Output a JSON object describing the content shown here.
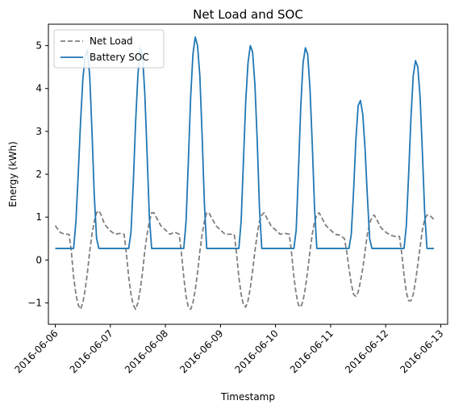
{
  "chart_data": {
    "type": "line",
    "title": "Net Load and SOC",
    "xlabel": "Timestamp",
    "ylabel": "Energy (kWh)",
    "xlim": [
      "2016-06-05T21:00",
      "2016-06-13T03:00"
    ],
    "ylim": [
      -1.5,
      5.5
    ],
    "x_ticks": [
      "2016-06-06",
      "2016-06-07",
      "2016-06-08",
      "2016-06-09",
      "2016-06-10",
      "2016-06-11",
      "2016-06-12",
      "2016-06-13"
    ],
    "y_ticks": [
      -1,
      0,
      1,
      2,
      3,
      4,
      5
    ],
    "grid": false,
    "legend_position": "top-left",
    "series": [
      {
        "name": "Net Load",
        "color": "#7f7f7f",
        "style": "dashed",
        "points": [
          [
            "2016-06-06T00:00",
            0.8
          ],
          [
            "2016-06-06T02:00",
            0.65
          ],
          [
            "2016-06-06T04:00",
            0.6
          ],
          [
            "2016-06-06T06:00",
            0.6
          ],
          [
            "2016-06-06T07:00",
            0.2
          ],
          [
            "2016-06-06T08:00",
            -0.4
          ],
          [
            "2016-06-06T09:00",
            -0.8
          ],
          [
            "2016-06-06T10:00",
            -1.05
          ],
          [
            "2016-06-06T11:00",
            -1.15
          ],
          [
            "2016-06-06T12:00",
            -1.0
          ],
          [
            "2016-06-06T13:00",
            -0.7
          ],
          [
            "2016-06-06T14:00",
            -0.3
          ],
          [
            "2016-06-06T15:00",
            0.2
          ],
          [
            "2016-06-06T16:00",
            0.6
          ],
          [
            "2016-06-06T17:00",
            0.9
          ],
          [
            "2016-06-06T18:00",
            1.1
          ],
          [
            "2016-06-06T19:00",
            1.15
          ],
          [
            "2016-06-06T20:00",
            1.05
          ],
          [
            "2016-06-06T21:00",
            0.9
          ],
          [
            "2016-06-06T22:00",
            0.8
          ],
          [
            "2016-06-07T00:00",
            0.68
          ],
          [
            "2016-06-07T02:00",
            0.6
          ],
          [
            "2016-06-07T04:00",
            0.62
          ],
          [
            "2016-06-07T06:00",
            0.6
          ],
          [
            "2016-06-07T07:00",
            0.15
          ],
          [
            "2016-06-07T08:00",
            -0.4
          ],
          [
            "2016-06-07T09:00",
            -0.8
          ],
          [
            "2016-06-07T10:00",
            -1.05
          ],
          [
            "2016-06-07T11:00",
            -1.15
          ],
          [
            "2016-06-07T12:00",
            -1.0
          ],
          [
            "2016-06-07T13:00",
            -0.7
          ],
          [
            "2016-06-07T14:00",
            -0.3
          ],
          [
            "2016-06-07T15:00",
            0.2
          ],
          [
            "2016-06-07T16:00",
            0.6
          ],
          [
            "2016-06-07T17:00",
            0.9
          ],
          [
            "2016-06-07T18:00",
            1.1
          ],
          [
            "2016-06-07T19:00",
            1.1
          ],
          [
            "2016-06-07T20:00",
            1.0
          ],
          [
            "2016-06-07T21:00",
            0.9
          ],
          [
            "2016-06-07T22:00",
            0.8
          ],
          [
            "2016-06-08T00:00",
            0.7
          ],
          [
            "2016-06-08T02:00",
            0.6
          ],
          [
            "2016-06-08T04:00",
            0.65
          ],
          [
            "2016-06-08T06:00",
            0.6
          ],
          [
            "2016-06-08T07:00",
            0.15
          ],
          [
            "2016-06-08T08:00",
            -0.4
          ],
          [
            "2016-06-08T09:00",
            -0.85
          ],
          [
            "2016-06-08T10:00",
            -1.1
          ],
          [
            "2016-06-08T11:00",
            -1.15
          ],
          [
            "2016-06-08T12:00",
            -1.0
          ],
          [
            "2016-06-08T13:00",
            -0.7
          ],
          [
            "2016-06-08T14:00",
            -0.3
          ],
          [
            "2016-06-08T15:00",
            0.2
          ],
          [
            "2016-06-08T16:00",
            0.6
          ],
          [
            "2016-06-08T17:00",
            0.9
          ],
          [
            "2016-06-08T18:00",
            1.1
          ],
          [
            "2016-06-08T19:00",
            1.1
          ],
          [
            "2016-06-08T20:00",
            1.0
          ],
          [
            "2016-06-08T21:00",
            0.9
          ],
          [
            "2016-06-08T22:00",
            0.8
          ],
          [
            "2016-06-09T00:00",
            0.7
          ],
          [
            "2016-06-09T02:00",
            0.6
          ],
          [
            "2016-06-09T04:00",
            0.6
          ],
          [
            "2016-06-09T06:00",
            0.6
          ],
          [
            "2016-06-09T07:00",
            0.15
          ],
          [
            "2016-06-09T08:00",
            -0.4
          ],
          [
            "2016-06-09T09:00",
            -0.8
          ],
          [
            "2016-06-09T10:00",
            -1.05
          ],
          [
            "2016-06-09T11:00",
            -1.1
          ],
          [
            "2016-06-09T12:00",
            -0.95
          ],
          [
            "2016-06-09T13:00",
            -0.65
          ],
          [
            "2016-06-09T14:00",
            -0.25
          ],
          [
            "2016-06-09T15:00",
            0.2
          ],
          [
            "2016-06-09T16:00",
            0.6
          ],
          [
            "2016-06-09T17:00",
            0.9
          ],
          [
            "2016-06-09T18:00",
            1.05
          ],
          [
            "2016-06-09T19:00",
            1.1
          ],
          [
            "2016-06-09T20:00",
            1.0
          ],
          [
            "2016-06-09T21:00",
            0.9
          ],
          [
            "2016-06-09T22:00",
            0.8
          ],
          [
            "2016-06-10T00:00",
            0.7
          ],
          [
            "2016-06-10T02:00",
            0.6
          ],
          [
            "2016-06-10T04:00",
            0.62
          ],
          [
            "2016-06-10T06:00",
            0.6
          ],
          [
            "2016-06-10T07:00",
            0.15
          ],
          [
            "2016-06-10T08:00",
            -0.4
          ],
          [
            "2016-06-10T09:00",
            -0.8
          ],
          [
            "2016-06-10T10:00",
            -1.05
          ],
          [
            "2016-06-10T11:00",
            -1.1
          ],
          [
            "2016-06-10T12:00",
            -0.95
          ],
          [
            "2016-06-10T13:00",
            -0.65
          ],
          [
            "2016-06-10T14:00",
            -0.25
          ],
          [
            "2016-06-10T15:00",
            0.2
          ],
          [
            "2016-06-10T16:00",
            0.6
          ],
          [
            "2016-06-10T17:00",
            0.9
          ],
          [
            "2016-06-10T18:00",
            1.05
          ],
          [
            "2016-06-10T19:00",
            1.1
          ],
          [
            "2016-06-10T20:00",
            1.0
          ],
          [
            "2016-06-10T21:00",
            0.9
          ],
          [
            "2016-06-10T22:00",
            0.8
          ],
          [
            "2016-06-11T00:00",
            0.7
          ],
          [
            "2016-06-11T02:00",
            0.6
          ],
          [
            "2016-06-11T04:00",
            0.58
          ],
          [
            "2016-06-11T06:00",
            0.5
          ],
          [
            "2016-06-11T07:00",
            0.2
          ],
          [
            "2016-06-11T08:00",
            -0.2
          ],
          [
            "2016-06-11T09:00",
            -0.55
          ],
          [
            "2016-06-11T10:00",
            -0.8
          ],
          [
            "2016-06-11T11:00",
            -0.85
          ],
          [
            "2016-06-11T12:00",
            -0.75
          ],
          [
            "2016-06-11T13:00",
            -0.5
          ],
          [
            "2016-06-11T14:00",
            -0.2
          ],
          [
            "2016-06-11T15:00",
            0.2
          ],
          [
            "2016-06-11T16:00",
            0.6
          ],
          [
            "2016-06-11T17:00",
            0.85
          ],
          [
            "2016-06-11T18:00",
            1.0
          ],
          [
            "2016-06-11T19:00",
            1.05
          ],
          [
            "2016-06-11T20:00",
            0.95
          ],
          [
            "2016-06-11T21:00",
            0.85
          ],
          [
            "2016-06-11T22:00",
            0.75
          ],
          [
            "2016-06-12T00:00",
            0.65
          ],
          [
            "2016-06-12T02:00",
            0.58
          ],
          [
            "2016-06-12T04:00",
            0.55
          ],
          [
            "2016-06-12T06:00",
            0.55
          ],
          [
            "2016-06-12T07:00",
            0.15
          ],
          [
            "2016-06-12T08:00",
            -0.35
          ],
          [
            "2016-06-12T09:00",
            -0.75
          ],
          [
            "2016-06-12T10:00",
            -0.95
          ],
          [
            "2016-06-12T11:00",
            -0.95
          ],
          [
            "2016-06-12T12:00",
            -0.8
          ],
          [
            "2016-06-12T13:00",
            -0.5
          ],
          [
            "2016-06-12T14:00",
            -0.1
          ],
          [
            "2016-06-12T15:00",
            0.3
          ],
          [
            "2016-06-12T16:00",
            0.7
          ],
          [
            "2016-06-12T17:00",
            0.95
          ],
          [
            "2016-06-12T18:00",
            1.05
          ],
          [
            "2016-06-12T19:00",
            1.05
          ],
          [
            "2016-06-12T20:00",
            1.0
          ],
          [
            "2016-06-12T21:00",
            0.95
          ]
        ]
      },
      {
        "name": "Battery SOC",
        "color": "#1f77b4",
        "style": "solid",
        "points": [
          [
            "2016-06-06T00:00",
            0.27
          ],
          [
            "2016-06-06T08:00",
            0.27
          ],
          [
            "2016-06-06T09:00",
            0.9
          ],
          [
            "2016-06-06T10:00",
            2.0
          ],
          [
            "2016-06-06T11:00",
            3.2
          ],
          [
            "2016-06-06T12:00",
            4.2
          ],
          [
            "2016-06-06T13:00",
            4.75
          ],
          [
            "2016-06-06T14:00",
            4.9
          ],
          [
            "2016-06-06T15:00",
            4.3
          ],
          [
            "2016-06-06T16:00",
            3.0
          ],
          [
            "2016-06-06T17:00",
            1.5
          ],
          [
            "2016-06-06T18:00",
            0.5
          ],
          [
            "2016-06-06T19:00",
            0.27
          ],
          [
            "2016-06-07T08:00",
            0.27
          ],
          [
            "2016-06-07T09:00",
            0.65
          ],
          [
            "2016-06-07T10:00",
            1.8
          ],
          [
            "2016-06-07T11:00",
            3.2
          ],
          [
            "2016-06-07T12:00",
            4.3
          ],
          [
            "2016-06-07T13:00",
            4.95
          ],
          [
            "2016-06-07T14:00",
            4.8
          ],
          [
            "2016-06-07T15:00",
            3.9
          ],
          [
            "2016-06-07T16:00",
            2.5
          ],
          [
            "2016-06-07T17:00",
            1.0
          ],
          [
            "2016-06-07T18:00",
            0.27
          ],
          [
            "2016-06-08T08:00",
            0.27
          ],
          [
            "2016-06-08T09:00",
            0.9
          ],
          [
            "2016-06-08T10:00",
            2.3
          ],
          [
            "2016-06-08T11:00",
            3.8
          ],
          [
            "2016-06-08T12:00",
            4.8
          ],
          [
            "2016-06-08T13:00",
            5.2
          ],
          [
            "2016-06-08T14:00",
            5.0
          ],
          [
            "2016-06-08T15:00",
            4.3
          ],
          [
            "2016-06-08T16:00",
            2.9
          ],
          [
            "2016-06-08T17:00",
            1.3
          ],
          [
            "2016-06-08T18:00",
            0.27
          ],
          [
            "2016-06-09T08:00",
            0.27
          ],
          [
            "2016-06-09T09:00",
            0.9
          ],
          [
            "2016-06-09T10:00",
            2.3
          ],
          [
            "2016-06-09T11:00",
            3.7
          ],
          [
            "2016-06-09T12:00",
            4.6
          ],
          [
            "2016-06-09T13:00",
            5.0
          ],
          [
            "2016-06-09T14:00",
            4.85
          ],
          [
            "2016-06-09T15:00",
            4.1
          ],
          [
            "2016-06-09T16:00",
            2.8
          ],
          [
            "2016-06-09T17:00",
            1.2
          ],
          [
            "2016-06-09T18:00",
            0.27
          ],
          [
            "2016-06-10T08:00",
            0.27
          ],
          [
            "2016-06-10T09:00",
            0.7
          ],
          [
            "2016-06-10T10:00",
            2.1
          ],
          [
            "2016-06-10T11:00",
            3.6
          ],
          [
            "2016-06-10T12:00",
            4.6
          ],
          [
            "2016-06-10T13:00",
            4.95
          ],
          [
            "2016-06-10T14:00",
            4.8
          ],
          [
            "2016-06-10T15:00",
            4.0
          ],
          [
            "2016-06-10T16:00",
            2.7
          ],
          [
            "2016-06-10T17:00",
            1.2
          ],
          [
            "2016-06-10T18:00",
            0.27
          ],
          [
            "2016-06-11T08:00",
            0.27
          ],
          [
            "2016-06-11T09:00",
            0.6
          ],
          [
            "2016-06-11T10:00",
            1.6
          ],
          [
            "2016-06-11T11:00",
            2.8
          ],
          [
            "2016-06-11T12:00",
            3.6
          ],
          [
            "2016-06-11T13:00",
            3.72
          ],
          [
            "2016-06-11T14:00",
            3.4
          ],
          [
            "2016-06-11T15:00",
            2.6
          ],
          [
            "2016-06-11T16:00",
            1.5
          ],
          [
            "2016-06-11T17:00",
            0.5
          ],
          [
            "2016-06-11T18:00",
            0.27
          ],
          [
            "2016-06-12T08:00",
            0.27
          ],
          [
            "2016-06-12T09:00",
            0.8
          ],
          [
            "2016-06-12T10:00",
            2.0
          ],
          [
            "2016-06-12T11:00",
            3.3
          ],
          [
            "2016-06-12T12:00",
            4.3
          ],
          [
            "2016-06-12T13:00",
            4.65
          ],
          [
            "2016-06-12T14:00",
            4.5
          ],
          [
            "2016-06-12T15:00",
            3.8
          ],
          [
            "2016-06-12T16:00",
            2.5
          ],
          [
            "2016-06-12T17:00",
            1.1
          ],
          [
            "2016-06-12T18:00",
            0.27
          ],
          [
            "2016-06-12T21:00",
            0.27
          ]
        ]
      }
    ]
  }
}
